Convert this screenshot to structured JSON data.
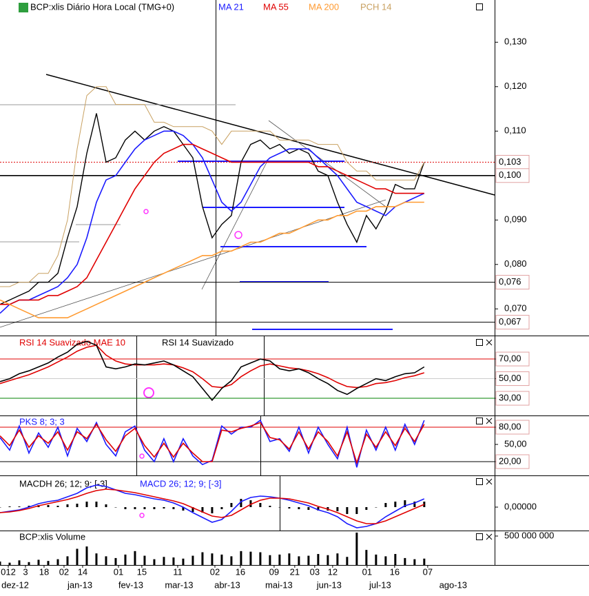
{
  "x_axis": {
    "x": [
      0,
      1,
      2,
      3,
      4,
      5,
      6,
      7,
      8,
      9,
      10,
      11,
      12,
      13,
      14,
      15,
      16,
      17,
      18,
      19,
      20,
      21,
      22,
      23,
      24,
      25,
      26,
      27,
      28,
      29,
      30,
      31,
      32,
      33,
      34,
      35,
      36,
      37,
      38,
      39,
      40,
      41,
      42,
      43,
      44
    ],
    "xlim": [
      0,
      51.3
    ],
    "xticks": [
      {
        "value": 0.86,
        "label": "012"
      },
      {
        "value": 2.64,
        "label": "3"
      },
      {
        "value": 4.57,
        "label": "18"
      },
      {
        "value": 6.64,
        "label": "02"
      },
      {
        "value": 8.57,
        "label": "14"
      },
      {
        "value": 12.29,
        "label": "01"
      },
      {
        "value": 14.71,
        "label": "15"
      },
      {
        "value": 18.43,
        "label": "11"
      },
      {
        "value": 22.29,
        "label": "02"
      },
      {
        "value": 24.93,
        "label": "16"
      },
      {
        "value": 28.43,
        "label": "09"
      },
      {
        "value": 30.57,
        "label": "21"
      },
      {
        "value": 32.64,
        "label": "03"
      },
      {
        "value": 34.5,
        "label": "12"
      },
      {
        "value": 38.07,
        "label": "01"
      },
      {
        "value": 40.93,
        "label": "16"
      },
      {
        "value": 44.36,
        "label": "07"
      }
    ],
    "month_ticks": [
      {
        "value": 1.57,
        "label": "dez-12"
      },
      {
        "value": 8.29,
        "label": "jan-13"
      },
      {
        "value": 13.57,
        "label": "fev-13"
      },
      {
        "value": 18.57,
        "label": "mar-13"
      },
      {
        "value": 23.57,
        "label": "abr-13"
      },
      {
        "value": 28.93,
        "label": "mai-13"
      },
      {
        "value": 34.14,
        "label": "jun-13"
      },
      {
        "value": 39.43,
        "label": "jul-13"
      },
      {
        "value": 47.0,
        "label": "ago-13"
      }
    ]
  },
  "chart_data": [
    {
      "type": "line",
      "title": "BCP:xlis Diário Hora Local (TMG+0)",
      "ylim": [
        0.064,
        0.1395
      ],
      "yticks": [
        {
          "value": 0.07,
          "label": "0,070"
        },
        {
          "value": 0.08,
          "label": "0,080"
        },
        {
          "value": 0.09,
          "label": "0,090"
        },
        {
          "value": 0.11,
          "label": "0,110"
        },
        {
          "value": 0.12,
          "label": "0,120"
        },
        {
          "value": 0.13,
          "label": "0,130"
        }
      ],
      "hlines": [
        {
          "value": 0.103,
          "label": "0,103",
          "color": "#e00000",
          "dash": true
        },
        {
          "value": 0.1,
          "label": "0,100",
          "color": "#000000"
        },
        {
          "value": 0.076,
          "label": "0,076",
          "color": "#000000"
        },
        {
          "value": 0.067,
          "label": "0,067",
          "color": "#000000"
        }
      ],
      "series": [
        {
          "color": "#000000",
          "values": [
            0.071,
            0.072,
            0.073,
            0.074,
            0.076,
            0.076,
            0.078,
            0.086,
            0.093,
            0.105,
            0.114,
            0.103,
            0.104,
            0.108,
            0.11,
            0.108,
            0.11,
            0.111,
            0.11,
            0.107,
            0.104,
            0.093,
            0.086,
            0.089,
            0.091,
            0.103,
            0.107,
            0.108,
            0.106,
            0.107,
            0.105,
            0.106,
            0.105,
            0.101,
            0.1,
            0.094,
            0.089,
            0.085,
            0.091,
            0.088,
            0.092,
            0.098,
            0.097,
            0.097,
            0.103
          ]
        },
        {
          "name": "MA 21",
          "color": "#1a1aff",
          "values": [
            0.069,
            0.071,
            0.072,
            0.072,
            0.073,
            0.074,
            0.075,
            0.077,
            0.08,
            0.086,
            0.094,
            0.099,
            0.1,
            0.103,
            0.106,
            0.108,
            0.109,
            0.11,
            0.11,
            0.109,
            0.107,
            0.104,
            0.099,
            0.094,
            0.092,
            0.094,
            0.098,
            0.102,
            0.104,
            0.105,
            0.106,
            0.106,
            0.106,
            0.104,
            0.102,
            0.1,
            0.097,
            0.094,
            0.093,
            0.092,
            0.091,
            0.093,
            0.094,
            0.095,
            0.096
          ]
        },
        {
          "name": "MA 55",
          "color": "#e00000",
          "values": [
            0.071,
            0.071,
            0.072,
            0.072,
            0.072,
            0.073,
            0.073,
            0.074,
            0.075,
            0.077,
            0.081,
            0.085,
            0.089,
            0.093,
            0.097,
            0.1,
            0.103,
            0.105,
            0.106,
            0.107,
            0.107,
            0.106,
            0.105,
            0.104,
            0.103,
            0.103,
            0.103,
            0.103,
            0.103,
            0.103,
            0.103,
            0.103,
            0.103,
            0.102,
            0.102,
            0.101,
            0.1,
            0.099,
            0.098,
            0.097,
            0.097,
            0.096,
            0.096,
            0.096,
            0.096
          ]
        },
        {
          "name": "MA 200",
          "color": "#ff9a30",
          "values": [
            0.072,
            0.071,
            0.07,
            0.069,
            0.068,
            0.068,
            0.068,
            0.068,
            0.069,
            0.07,
            0.071,
            0.072,
            0.073,
            0.074,
            0.075,
            0.076,
            0.077,
            0.078,
            0.079,
            0.08,
            0.081,
            0.082,
            0.082,
            0.083,
            0.083,
            0.084,
            0.085,
            0.085,
            0.086,
            0.087,
            0.087,
            0.088,
            0.089,
            0.09,
            0.09,
            0.091,
            0.091,
            0.092,
            0.092,
            0.093,
            0.093,
            0.093,
            0.094,
            0.094,
            0.094
          ]
        },
        {
          "name": "PCH 14",
          "color": "#c8a060",
          "values": [
            0.075,
            0.075,
            0.076,
            0.076,
            0.078,
            0.078,
            0.082,
            0.09,
            0.106,
            0.118,
            0.12,
            0.12,
            0.116,
            0.116,
            0.116,
            0.116,
            0.112,
            0.112,
            0.111,
            0.111,
            0.111,
            0.111,
            0.11,
            0.107,
            0.11,
            0.11,
            0.11,
            0.11,
            0.11,
            0.108,
            0.108,
            0.108,
            0.108,
            0.107,
            0.107,
            0.107,
            0.103,
            0.101,
            0.101,
            0.099,
            0.099,
            0.099,
            0.099,
            0.099,
            0.103
          ]
        }
      ]
    },
    {
      "type": "line",
      "ylim": [
        12.5,
        93.2
      ],
      "yticks": [
        {
          "value": 30,
          "label": "30,00"
        },
        {
          "value": 50,
          "label": "50,00"
        },
        {
          "value": 70,
          "label": "70,00"
        }
      ],
      "hlines": [
        {
          "value": 70,
          "color": "#e00000"
        },
        {
          "value": 50,
          "color": "#cccccc"
        },
        {
          "value": 30,
          "color": "#008000"
        }
      ],
      "series": [
        {
          "name": "RSI 14 Suavizado MAE 10",
          "color": "#e00000",
          "values": [
            45,
            48,
            51,
            54,
            58,
            62,
            67,
            72,
            78,
            82,
            84,
            74,
            68,
            65,
            64,
            64,
            64,
            65,
            64,
            61,
            57,
            50,
            42,
            41,
            44,
            52,
            58,
            63,
            65,
            63,
            61,
            60,
            58,
            55,
            51,
            46,
            42,
            41,
            42,
            45,
            46,
            48,
            51,
            53,
            56
          ]
        },
        {
          "name": "RSI 14 Suavizado",
          "color": "#000000",
          "values": [
            47,
            50,
            55,
            58,
            62,
            66,
            72,
            77,
            85,
            88,
            84,
            62,
            60,
            62,
            65,
            64,
            66,
            68,
            64,
            58,
            52,
            40,
            28,
            40,
            48,
            62,
            66,
            70,
            68,
            60,
            58,
            60,
            56,
            50,
            45,
            38,
            34,
            40,
            45,
            50,
            48,
            52,
            55,
            56,
            62
          ]
        }
      ]
    },
    {
      "type": "line",
      "title": "PKS 8; 3; 3",
      "ylim": [
        -4,
        100.4
      ],
      "yticks": [
        {
          "value": 20,
          "label": "20,00"
        },
        {
          "value": 50,
          "label": "50,00"
        },
        {
          "value": 80,
          "label": "80,00"
        }
      ],
      "hlines": [
        {
          "value": 80,
          "color": "#e00000"
        },
        {
          "value": 20,
          "color": "#000000"
        }
      ],
      "series": [
        {
          "color": "#1a1aff",
          "values": [
            62,
            40,
            82,
            35,
            70,
            45,
            80,
            30,
            78,
            55,
            88,
            50,
            30,
            72,
            82,
            40,
            20,
            60,
            20,
            60,
            30,
            15,
            22,
            82,
            68,
            80,
            80,
            92,
            55,
            60,
            38,
            80,
            35,
            80,
            50,
            25,
            80,
            10,
            75,
            40,
            80,
            40,
            85,
            50,
            92
          ]
        },
        {
          "color": "#e00000",
          "values": [
            65,
            48,
            75,
            45,
            65,
            52,
            72,
            40,
            72,
            60,
            85,
            58,
            38,
            65,
            78,
            48,
            28,
            52,
            28,
            52,
            35,
            20,
            20,
            75,
            72,
            78,
            82,
            88,
            62,
            58,
            42,
            72,
            42,
            72,
            55,
            30,
            72,
            18,
            68,
            45,
            72,
            48,
            78,
            55,
            85
          ]
        }
      ]
    },
    {
      "type": "macd",
      "ylim": [
        -0.0034,
        0.0046
      ],
      "yticks": [
        {
          "value": 0,
          "label": "0,00000"
        }
      ],
      "series": [
        {
          "name": "MACDH 26; 12; 9; [-3]",
          "type": "bar",
          "color": "#000000",
          "values": [
            0,
            0.0001,
            0.0001,
            0.0002,
            0.0003,
            0.0003,
            0.0002,
            0.0004,
            0.0005,
            0.0008,
            0.0008,
            0.0004,
            0,
            -0.0003,
            -0.0003,
            -0.0003,
            -0.0003,
            -0.0002,
            -0.0003,
            -0.0005,
            -0.0007,
            -0.0008,
            -0.0009,
            -0.0003,
            0.0006,
            0.0012,
            0.001,
            0.0006,
            0.0002,
            0,
            -0.0002,
            -0.0003,
            -0.0004,
            -0.0005,
            -0.0005,
            -0.0006,
            -0.001,
            -0.001,
            -0.0004,
            0,
            0.0006,
            0.0008,
            0.001,
            0.0008,
            0.0008
          ]
        },
        {
          "name": "MACD 26; 12; 9; [-3]",
          "color": "#1a1aff",
          "values": [
            -0.0008,
            -0.0006,
            -0.0004,
            0,
            0.0005,
            0.0008,
            0.001,
            0.0015,
            0.002,
            0.0028,
            0.0032,
            0.003,
            0.0025,
            0.002,
            0.0018,
            0.0015,
            0.0012,
            0.001,
            0.0006,
            0,
            -0.0008,
            -0.0015,
            -0.0022,
            -0.0018,
            -0.0006,
            0.0008,
            0.0014,
            0.0016,
            0.0015,
            0.0013,
            0.001,
            0.0006,
            0.0002,
            -0.0004,
            -0.0008,
            -0.0014,
            -0.0024,
            -0.003,
            -0.0028,
            -0.0024,
            -0.0014,
            -0.0006,
            0.0002,
            0.0006,
            0.0012
          ]
        },
        {
          "color": "#e00000",
          "values": [
            -0.0008,
            -0.0007,
            -0.0005,
            -0.0002,
            0.0002,
            0.0005,
            0.0008,
            0.0011,
            0.0015,
            0.002,
            0.0024,
            0.0026,
            0.0025,
            0.0023,
            0.0021,
            0.0018,
            0.0015,
            0.0012,
            0.0009,
            0.0005,
            -0.0001,
            -0.0007,
            -0.0013,
            -0.0015,
            -0.0012,
            -0.0004,
            0.0004,
            0.001,
            0.0013,
            0.0013,
            0.0012,
            0.0009,
            0.0006,
            0.0001,
            -0.0003,
            -0.0008,
            -0.0014,
            -0.002,
            -0.0024,
            -0.0024,
            -0.002,
            -0.0014,
            -0.0008,
            -0.0002,
            0.0004
          ]
        }
      ]
    },
    {
      "type": "bar",
      "title": "BCP:xlis Volume",
      "ylim": [
        0,
        595000000
      ],
      "yticks": [
        {
          "value": 500000000,
          "label": "500 000 000"
        }
      ],
      "series": [
        {
          "color": "#000000",
          "values": [
            60000000,
            40000000,
            80000000,
            50000000,
            90000000,
            70000000,
            100000000,
            150000000,
            280000000,
            320000000,
            200000000,
            150000000,
            120000000,
            180000000,
            240000000,
            160000000,
            100000000,
            140000000,
            130000000,
            110000000,
            160000000,
            220000000,
            200000000,
            180000000,
            150000000,
            240000000,
            230000000,
            220000000,
            170000000,
            180000000,
            200000000,
            150000000,
            160000000,
            190000000,
            170000000,
            200000000,
            140000000,
            560000000,
            260000000,
            180000000,
            150000000,
            190000000,
            120000000,
            100000000,
            110000000
          ]
        }
      ]
    }
  ]
}
